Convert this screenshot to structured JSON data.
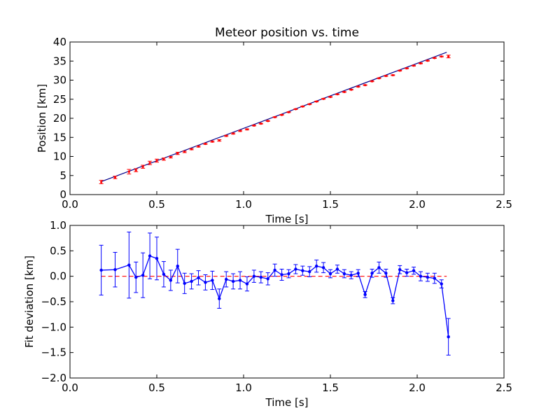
{
  "chart_data": [
    {
      "type": "scatter",
      "title": "Meteor position vs. time",
      "xlabel": "Time [s]",
      "ylabel": "Position [km]",
      "xlim": [
        0.0,
        2.5
      ],
      "ylim": [
        0,
        40
      ],
      "xticks": [
        "0.0",
        "0.5",
        "1.0",
        "1.5",
        "2.0",
        "2.5"
      ],
      "yticks": [
        "0",
        "5",
        "10",
        "15",
        "20",
        "25",
        "30",
        "35",
        "40"
      ],
      "grid": false,
      "colors": {
        "points": "#ff0000",
        "fit": "#00008b"
      },
      "fit_line": {
        "x": [
          0.18,
          2.17
        ],
        "y": [
          3.4,
          37.3
        ]
      },
      "series": [
        {
          "x": [
            0.18,
            0.26,
            0.34,
            0.38,
            0.42,
            0.46,
            0.5,
            0.54,
            0.58,
            0.62,
            0.66,
            0.7,
            0.74,
            0.78,
            0.82,
            0.86,
            0.9,
            0.94,
            0.98,
            1.02,
            1.06,
            1.1,
            1.14,
            1.18,
            1.22,
            1.26,
            1.3,
            1.34,
            1.38,
            1.42,
            1.46,
            1.5,
            1.54,
            1.58,
            1.62,
            1.66,
            1.7,
            1.74,
            1.78,
            1.82,
            1.86,
            1.9,
            1.94,
            1.98,
            2.02,
            2.06,
            2.1,
            2.14,
            2.18
          ],
          "y": [
            3.3,
            4.5,
            6.0,
            6.4,
            7.3,
            8.3,
            8.9,
            9.3,
            9.8,
            10.8,
            11.2,
            11.9,
            12.6,
            13.3,
            13.9,
            14.2,
            15.4,
            16.0,
            16.7,
            17.1,
            18.1,
            18.6,
            19.3,
            20.3,
            20.9,
            21.6,
            22.4,
            23.1,
            23.7,
            24.4,
            25.1,
            25.6,
            26.3,
            26.9,
            27.5,
            28.3,
            28.7,
            29.7,
            30.5,
            31.1,
            31.3,
            32.5,
            33.1,
            33.8,
            34.4,
            35.1,
            35.8,
            36.2,
            36.2
          ],
          "yerr": [
            0.45,
            0.33,
            0.6,
            0.4,
            0.4,
            0.45,
            0.4,
            0.3,
            0.2,
            0.3,
            0.2,
            0.15,
            0.15,
            0.15,
            0.15,
            0.2,
            0.15,
            0.15,
            0.15,
            0.15,
            0.1,
            0.1,
            0.1,
            0.1,
            0.1,
            0.1,
            0.1,
            0.1,
            0.1,
            0.1,
            0.1,
            0.1,
            0.1,
            0.1,
            0.1,
            0.1,
            0.1,
            0.1,
            0.1,
            0.1,
            0.1,
            0.1,
            0.1,
            0.1,
            0.1,
            0.1,
            0.1,
            0.1,
            0.35
          ]
        }
      ]
    },
    {
      "type": "line",
      "title": "",
      "xlabel": "Time [s]",
      "ylabel": "Fit deviation [km]",
      "xlim": [
        0.0,
        2.5
      ],
      "ylim": [
        -2.0,
        1.0
      ],
      "xticks": [
        "0.0",
        "0.5",
        "1.0",
        "1.5",
        "2.0",
        "2.5"
      ],
      "yticks": [
        "1.0",
        "0.5",
        "0.0",
        "−0.5",
        "−1.0",
        "−1.5",
        "−2.0"
      ],
      "grid": false,
      "colors": {
        "series": "#0000ff",
        "reference": "#ff0000"
      },
      "reference_line": {
        "x": [
          0.18,
          2.17
        ],
        "y": [
          0.0,
          0.0
        ],
        "style": "dashed"
      },
      "series": [
        {
          "x": [
            0.18,
            0.26,
            0.34,
            0.38,
            0.42,
            0.46,
            0.5,
            0.54,
            0.58,
            0.62,
            0.66,
            0.7,
            0.74,
            0.78,
            0.82,
            0.86,
            0.9,
            0.94,
            0.98,
            1.02,
            1.06,
            1.1,
            1.14,
            1.18,
            1.22,
            1.26,
            1.3,
            1.34,
            1.38,
            1.42,
            1.46,
            1.5,
            1.54,
            1.58,
            1.62,
            1.66,
            1.7,
            1.74,
            1.78,
            1.82,
            1.86,
            1.9,
            1.94,
            1.98,
            2.02,
            2.06,
            2.1,
            2.14,
            2.18
          ],
          "y": [
            0.12,
            0.13,
            0.22,
            -0.02,
            0.02,
            0.4,
            0.35,
            0.04,
            -0.08,
            0.2,
            -0.14,
            -0.1,
            -0.03,
            -0.12,
            -0.08,
            -0.44,
            -0.06,
            -0.1,
            -0.08,
            -0.15,
            0.0,
            -0.02,
            -0.05,
            0.12,
            0.03,
            0.05,
            0.14,
            0.11,
            0.09,
            0.2,
            0.17,
            0.05,
            0.14,
            0.05,
            0.02,
            0.06,
            -0.36,
            0.06,
            0.17,
            0.06,
            -0.48,
            0.13,
            0.07,
            0.11,
            0.0,
            -0.02,
            -0.04,
            -0.15,
            -1.19
          ],
          "yerr": [
            0.49,
            0.34,
            0.65,
            0.3,
            0.44,
            0.45,
            0.42,
            0.25,
            0.2,
            0.33,
            0.2,
            0.15,
            0.14,
            0.15,
            0.18,
            0.19,
            0.15,
            0.15,
            0.17,
            0.14,
            0.12,
            0.11,
            0.12,
            0.12,
            0.11,
            0.08,
            0.09,
            0.09,
            0.1,
            0.12,
            0.1,
            0.08,
            0.08,
            0.08,
            0.07,
            0.07,
            0.06,
            0.08,
            0.11,
            0.08,
            0.06,
            0.08,
            0.07,
            0.07,
            0.09,
            0.08,
            0.1,
            0.08,
            0.36
          ]
        }
      ]
    }
  ]
}
